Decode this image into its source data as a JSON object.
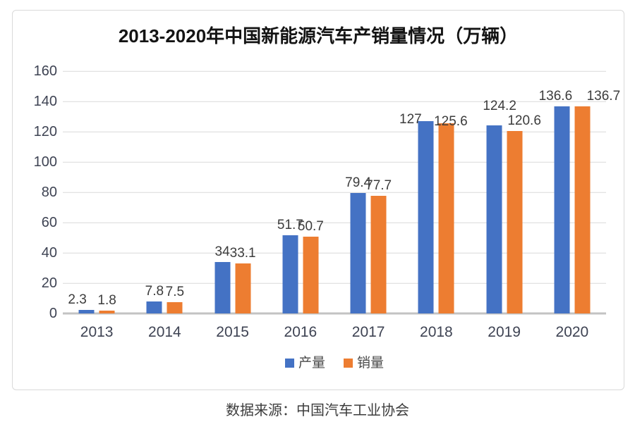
{
  "chart_data": {
    "type": "bar",
    "title": "2013-2020年中国新能源汽车产销量情况（万辆）",
    "categories": [
      "2013",
      "2014",
      "2015",
      "2016",
      "2017",
      "2018",
      "2019",
      "2020"
    ],
    "series": [
      {
        "key": "production",
        "name": "产量",
        "color": "#4472C4",
        "values": [
          2.3,
          7.8,
          34,
          51.7,
          79.4,
          127,
          124.2,
          136.6
        ],
        "labels": [
          "2.3",
          "7.8",
          "34",
          "51.7",
          "79.4",
          "127",
          "124.2",
          "136.6"
        ]
      },
      {
        "key": "sales",
        "name": "销量",
        "color": "#ED7D31",
        "values": [
          1.8,
          7.5,
          33.1,
          50.7,
          77.7,
          125.6,
          120.6,
          136.7
        ],
        "labels": [
          "1.8",
          "7.5",
          "33.1",
          "50.7",
          "77.7",
          "125.6",
          "120.6",
          "136.7"
        ]
      }
    ],
    "ylim": [
      0,
      160
    ],
    "y_ticks": [
      0,
      20,
      40,
      60,
      80,
      100,
      120,
      140,
      160
    ],
    "grid": true,
    "legend_position": "bottom",
    "gridline_color": "#d9d9d9",
    "baseline_color": "#c3c3c3"
  },
  "source": {
    "text": "数据来源：中国汽车工业协会"
  }
}
